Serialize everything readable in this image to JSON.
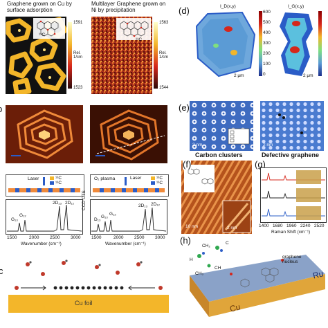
{
  "a": {
    "left_caption": "Graphene grown on Cu by surface adsorption",
    "right_caption": "Multilayer Graphene grown on Ni by precipitation",
    "left_cb_max": "1591",
    "left_cb_min": "1523",
    "right_cb_max": "1563",
    "right_cb_min": "1544",
    "cb_unit": "Rel. 1/cm",
    "c12": "¹²C",
    "c13": "¹³C"
  },
  "b": {
    "label": "b",
    "laser": "Laser",
    "o2plasma": "O₂ plasma",
    "legend_12c": "¹²C",
    "legend_13c": "¹³C",
    "xlabel": "Wavenumber (cm⁻¹)",
    "xlabel_right": "Wavenumber (cm⁻¹)",
    "ylabel_right": "CCD CTS",
    "peaks_left": [
      "G₁₃",
      "G₁₂",
      "2D₁₃",
      "2D₁₂"
    ],
    "peaks_right": [
      "D₁₃",
      "G₁₃",
      "G₁₂",
      "2D₁₃",
      "2D₁₂"
    ],
    "ticks_left": [
      "1500",
      "2000",
      "2500",
      "3000"
    ],
    "ticks_right": [
      "1500",
      "2000",
      "2500",
      "3000"
    ]
  },
  "c": {
    "label": "c",
    "substrate": "Cu foil"
  },
  "d": {
    "label": "(d)",
    "left_title": "I_D(x,y)",
    "right_title": "I_G(x,y)",
    "cb_ticks": [
      "600",
      "500",
      "400",
      "300",
      "200",
      "100",
      "0"
    ],
    "scale_left": "2 μm",
    "scale_right": "2 μm"
  },
  "e": {
    "label": "(e)",
    "left_caption": "Carbon clusters",
    "right_caption": "Defective graphene",
    "scale_left": "2 nm",
    "scale_right": "2 nm"
  },
  "f": {
    "label": "(f)",
    "scale_main": "10 nm",
    "scale_inset": "2 nm"
  },
  "g": {
    "label": "(g)",
    "xlabel": "Raman Shift (cm⁻¹)",
    "ticks": [
      "1400",
      "1680",
      "1960",
      "2240",
      "2520"
    ]
  },
  "h": {
    "label": "(h)",
    "substrate_left": "Cu",
    "substrate_right": "Ru",
    "annotation": "graphene nucleus",
    "species": [
      "CH₂",
      "C",
      "H",
      "CH",
      "CH₃"
    ]
  },
  "colors": {
    "cu_gold": "#f3b62a",
    "hot_red": "#d6261b",
    "cool_blue": "#2a5cc7",
    "stm_blue": "#3e6bc0"
  }
}
